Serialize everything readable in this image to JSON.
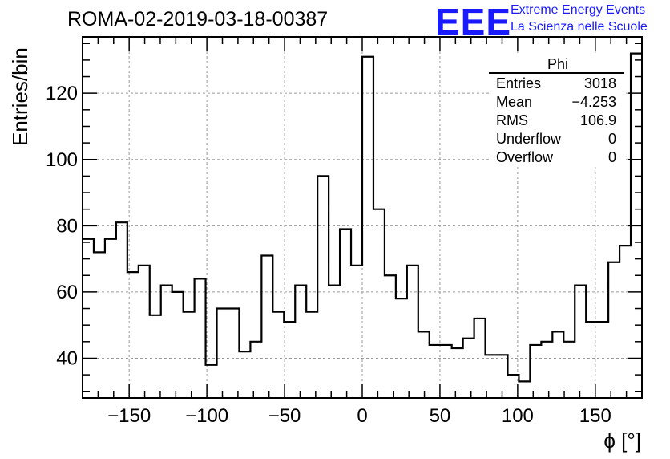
{
  "header": {
    "run_title": "ROMA-02-2019-03-18-00387"
  },
  "logo": {
    "mark": "EEE",
    "line1": "Extreme Energy Events",
    "line2": "La Scienza nelle Scuole",
    "color": "#1a1aff"
  },
  "stats_box": {
    "title": "Phi",
    "rows": [
      {
        "label": "Entries",
        "value": "3018"
      },
      {
        "label": "Mean",
        "value": "−4.253"
      },
      {
        "label": "RMS",
        "value": "106.9"
      },
      {
        "label": "Underflow",
        "value": "0"
      },
      {
        "label": "Overflow",
        "value": "0"
      }
    ]
  },
  "chart_data": {
    "type": "histogram",
    "title": "ROMA-02-2019-03-18-00387",
    "xlabel": "ϕ [°]",
    "ylabel": "Entries/bin",
    "xlim": [
      -180,
      180
    ],
    "ylim": [
      28,
      137
    ],
    "bin_width": 7.2,
    "bin_edges_start": -180,
    "values": [
      76,
      72,
      76,
      81,
      66,
      68,
      53,
      62,
      60,
      54,
      64,
      38,
      55,
      55,
      42,
      45,
      71,
      54,
      51,
      62,
      54,
      95,
      62,
      79,
      68,
      131,
      85,
      65,
      58,
      68,
      48,
      44,
      44,
      43,
      46,
      52,
      41,
      41,
      35,
      33,
      44,
      45,
      48,
      45,
      62,
      51,
      51,
      69,
      74,
      132
    ],
    "x_ticks": [
      -150,
      -100,
      -50,
      0,
      50,
      100,
      150
    ],
    "x_tick_labels": [
      "−150",
      "−100",
      "−50",
      "0",
      "50",
      "100",
      "150"
    ],
    "y_ticks": [
      40,
      60,
      80,
      100,
      120
    ],
    "y_tick_labels": [
      "40",
      "60",
      "80",
      "100",
      "120"
    ],
    "grid": true,
    "line_color": "#000000",
    "grid_color": "#999999"
  }
}
